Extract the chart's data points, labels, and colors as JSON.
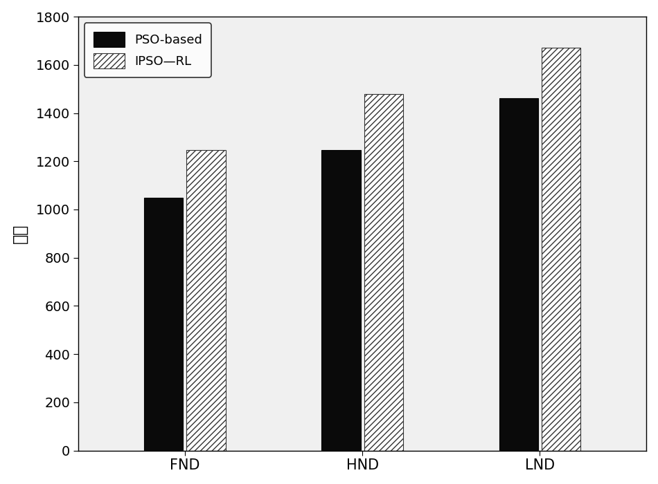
{
  "categories": [
    "FND",
    "HND",
    "LND"
  ],
  "pso_values": [
    1050,
    1248,
    1462
  ],
  "ipso_values": [
    1248,
    1480,
    1672
  ],
  "ylabel": "轮数",
  "ylim": [
    0,
    1800
  ],
  "yticks": [
    0,
    200,
    400,
    600,
    800,
    1000,
    1200,
    1400,
    1600,
    1800
  ],
  "legend_labels": [
    "PSO-based",
    "IPSO—RL"
  ],
  "bar_width": 0.22,
  "bar_gap": 0.02,
  "pso_color": "#0a0a0a",
  "ipso_hatch": "////",
  "ipso_facecolor": "#ffffff",
  "ipso_edgecolor": "#333333",
  "plot_bg_color": "#f0f0f0",
  "background_color": "#ffffff",
  "figsize": [
    9.5,
    7.0
  ],
  "dpi": 100,
  "tick_fontsize": 14,
  "label_fontsize": 15,
  "legend_fontsize": 13
}
